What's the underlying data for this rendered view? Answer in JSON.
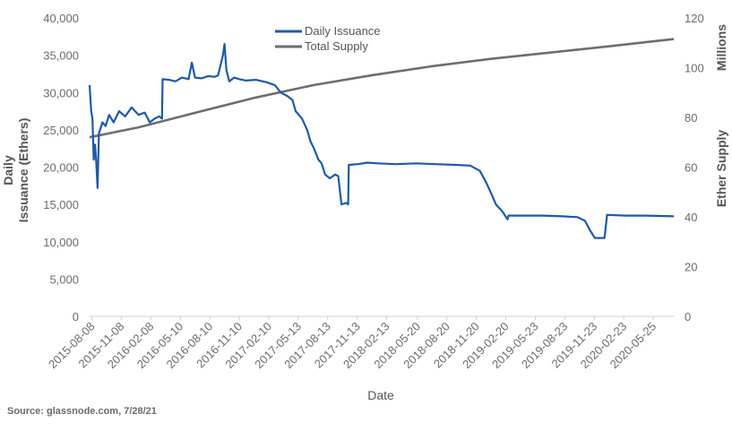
{
  "source": "Source: glassnode.com, 7/28/21",
  "chart_data": {
    "type": "line",
    "xlabel": "Date",
    "ylabel_left": "Daily\nIssuance (Ethers)",
    "ylabel_right": "Ether Supply",
    "right_units": "Millions",
    "ylim_left": [
      0,
      40000
    ],
    "ylim_right": [
      0,
      120
    ],
    "yticks_left": [
      "0",
      "5,000",
      "10,000",
      "15,000",
      "20,000",
      "25,000",
      "30,000",
      "35,000",
      "40,000"
    ],
    "yticks_right": [
      "0",
      "20",
      "40",
      "60",
      "80",
      "100",
      "120"
    ],
    "x_ticks": [
      "2015-08-08",
      "2015-11-08",
      "2016-02-08",
      "2016-05-10",
      "2016-08-10",
      "2016-11-10",
      "2017-02-10",
      "2017-05-13",
      "2017-08-13",
      "2017-11-13",
      "2018-02-13",
      "2018-05-20",
      "2018-08-20",
      "2018-11-20",
      "2019-02-20",
      "2019-05-23",
      "2019-08-23",
      "2019-11-23",
      "2020-02-23",
      "2020-05-25"
    ],
    "x_range": [
      "2015-08-01",
      "2020-07-28"
    ],
    "grid": false,
    "legend": "top-center",
    "series": [
      {
        "name": "Daily Issuance",
        "axis": "left",
        "color": "#1f5aa6",
        "points": [
          [
            "2015-08-01",
            31000
          ],
          [
            "2015-08-06",
            27500
          ],
          [
            "2015-08-10",
            26500
          ],
          [
            "2015-08-14",
            21000
          ],
          [
            "2015-08-18",
            23000
          ],
          [
            "2015-08-22",
            20500
          ],
          [
            "2015-08-26",
            17200
          ],
          [
            "2015-08-30",
            24500
          ],
          [
            "2015-09-10",
            26000
          ],
          [
            "2015-09-20",
            25500
          ],
          [
            "2015-10-01",
            27000
          ],
          [
            "2015-10-15",
            26000
          ],
          [
            "2015-11-01",
            27500
          ],
          [
            "2015-11-20",
            26800
          ],
          [
            "2015-12-10",
            28000
          ],
          [
            "2016-01-01",
            27000
          ],
          [
            "2016-01-20",
            27300
          ],
          [
            "2016-02-05",
            26000
          ],
          [
            "2016-02-20",
            26500
          ],
          [
            "2016-03-05",
            26800
          ],
          [
            "2016-03-14",
            26500
          ],
          [
            "2016-03-16",
            31800
          ],
          [
            "2016-04-05",
            31700
          ],
          [
            "2016-04-25",
            31500
          ],
          [
            "2016-05-15",
            32000
          ],
          [
            "2016-06-05",
            31800
          ],
          [
            "2016-06-15",
            34000
          ],
          [
            "2016-06-25",
            32000
          ],
          [
            "2016-07-15",
            31900
          ],
          [
            "2016-08-05",
            32200
          ],
          [
            "2016-08-25",
            32100
          ],
          [
            "2016-09-05",
            32300
          ],
          [
            "2016-09-20",
            35000
          ],
          [
            "2016-09-25",
            36500
          ],
          [
            "2016-10-01",
            33000
          ],
          [
            "2016-10-10",
            31500
          ],
          [
            "2016-10-25",
            32000
          ],
          [
            "2016-11-10",
            31800
          ],
          [
            "2016-12-01",
            31600
          ],
          [
            "2017-01-01",
            31700
          ],
          [
            "2017-02-01",
            31400
          ],
          [
            "2017-03-01",
            31000
          ],
          [
            "2017-03-20",
            30000
          ],
          [
            "2017-04-10",
            29500
          ],
          [
            "2017-04-25",
            29000
          ],
          [
            "2017-05-05",
            27500
          ],
          [
            "2017-05-25",
            26500
          ],
          [
            "2017-06-10",
            25000
          ],
          [
            "2017-06-20",
            23500
          ],
          [
            "2017-07-01",
            22500
          ],
          [
            "2017-07-15",
            21000
          ],
          [
            "2017-07-25",
            20500
          ],
          [
            "2017-08-05",
            19000
          ],
          [
            "2017-08-20",
            18500
          ],
          [
            "2017-09-05",
            19000
          ],
          [
            "2017-09-15",
            18800
          ],
          [
            "2017-09-25",
            15000
          ],
          [
            "2017-10-10",
            15200
          ],
          [
            "2017-10-16",
            15000
          ],
          [
            "2017-10-18",
            20300
          ],
          [
            "2017-11-15",
            20400
          ],
          [
            "2017-12-15",
            20600
          ],
          [
            "2018-01-15",
            20500
          ],
          [
            "2018-03-15",
            20400
          ],
          [
            "2018-05-15",
            20500
          ],
          [
            "2018-07-15",
            20400
          ],
          [
            "2018-09-15",
            20300
          ],
          [
            "2018-11-01",
            20200
          ],
          [
            "2018-12-01",
            19500
          ],
          [
            "2018-12-20",
            18000
          ],
          [
            "2019-01-05",
            16500
          ],
          [
            "2019-01-20",
            15000
          ],
          [
            "2019-02-10",
            14000
          ],
          [
            "2019-02-25",
            13000
          ],
          [
            "2019-02-28",
            13500
          ],
          [
            "2019-04-15",
            13500
          ],
          [
            "2019-06-15",
            13500
          ],
          [
            "2019-08-15",
            13400
          ],
          [
            "2019-10-01",
            13300
          ],
          [
            "2019-10-25",
            12800
          ],
          [
            "2019-11-10",
            11500
          ],
          [
            "2019-11-25",
            10500
          ],
          [
            "2019-12-25",
            10500
          ],
          [
            "2020-01-02",
            13600
          ],
          [
            "2020-03-01",
            13500
          ],
          [
            "2020-05-01",
            13500
          ],
          [
            "2020-07-28",
            13400
          ]
        ]
      },
      {
        "name": "Total Supply",
        "axis": "right",
        "color": "#6e6e6e",
        "points": [
          [
            "2015-08-01",
            72
          ],
          [
            "2016-01-01",
            76
          ],
          [
            "2016-07-01",
            82
          ],
          [
            "2017-01-01",
            88
          ],
          [
            "2017-07-01",
            93
          ],
          [
            "2018-01-01",
            97
          ],
          [
            "2018-07-01",
            100.5
          ],
          [
            "2019-01-01",
            103.5
          ],
          [
            "2019-07-01",
            106
          ],
          [
            "2020-01-01",
            108.5
          ],
          [
            "2020-07-28",
            111.5
          ]
        ]
      }
    ]
  }
}
